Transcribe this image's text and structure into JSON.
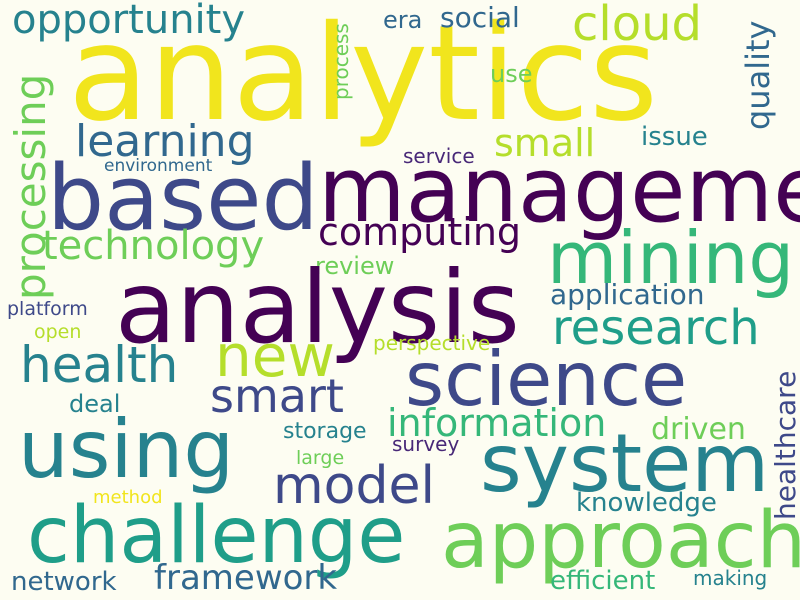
{
  "palette": {
    "background": "#fdfdf2",
    "yellow": "#f1e51d",
    "light_green": "#b5de2b",
    "green": "#6ece58",
    "sea_green": "#35b779",
    "teal": "#1f9e89",
    "blue_teal": "#26828e",
    "steel_blue": "#31688e",
    "indigo": "#3e4989",
    "dark_purple": "#482878",
    "deep_purple": "#440154"
  },
  "words": {
    "analytics": "analytics",
    "opportunity": "opportunity",
    "cloud": "cloud",
    "era": "era",
    "social": "social",
    "use": "use",
    "process": "process",
    "quality": "quality",
    "processing": "processing",
    "learning": "learning",
    "small": "small",
    "issue": "issue",
    "service": "service",
    "environment": "environment",
    "based": "based",
    "management": "management",
    "computing": "computing",
    "technology": "technology",
    "mining": "mining",
    "review": "review",
    "analysis": "analysis",
    "application": "application",
    "platform": "platform",
    "research": "research",
    "open": "open",
    "perspective": "perspective",
    "new": "new",
    "health": "health",
    "science": "science",
    "smart": "smart",
    "deal": "deal",
    "information": "information",
    "storage": "storage",
    "driven": "driven",
    "survey": "survey",
    "healthcare": "healthcare",
    "using": "using",
    "system": "system",
    "large": "large",
    "model": "model",
    "knowledge": "knowledge",
    "method": "method",
    "challenge": "challenge",
    "approach": "approach",
    "network": "network",
    "framework": "framework",
    "efficient": "efficient",
    "making": "making"
  },
  "word_colors": {
    "analytics": "#f1e51d",
    "opportunity": "#26828e",
    "cloud": "#b5de2b",
    "era": "#31688e",
    "social": "#31688e",
    "use": "#6ece58",
    "process": "#6ece58",
    "quality": "#31688e",
    "processing": "#6ece58",
    "learning": "#31688e",
    "small": "#b5de2b",
    "issue": "#26828e",
    "service": "#482878",
    "environment": "#31688e",
    "based": "#3e4989",
    "management": "#440154",
    "computing": "#440154",
    "technology": "#6ece58",
    "mining": "#35b779",
    "review": "#6ece58",
    "analysis": "#440154",
    "application": "#31688e",
    "platform": "#3e4989",
    "research": "#1f9e89",
    "open": "#b5de2b",
    "perspective": "#b5de2b",
    "new": "#b5de2b",
    "health": "#26828e",
    "science": "#3e4989",
    "smart": "#3e4989",
    "deal": "#26828e",
    "information": "#35b779",
    "storage": "#26828e",
    "driven": "#6ece58",
    "survey": "#482878",
    "healthcare": "#3e4989",
    "using": "#26828e",
    "system": "#26828e",
    "large": "#6ece58",
    "model": "#3e4989",
    "knowledge": "#26828e",
    "method": "#f1e51d",
    "challenge": "#1f9e89",
    "approach": "#6ece58",
    "network": "#31688e",
    "framework": "#31688e",
    "efficient": "#35b779",
    "making": "#26828e"
  }
}
